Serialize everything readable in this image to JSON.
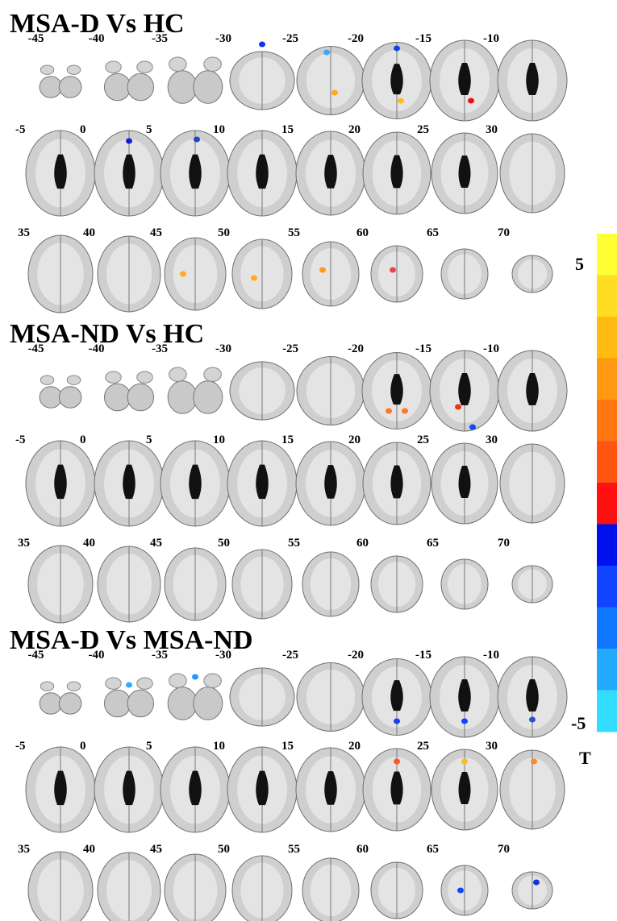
{
  "panels": [
    {
      "title": "MSA-D Vs HC",
      "slices": [
        "-45",
        "-40",
        "-35",
        "-30",
        "-25",
        "-20",
        "-15",
        "-10",
        "-5",
        "0",
        "5",
        "10",
        "15",
        "20",
        "25",
        "30",
        "35",
        "40",
        "45",
        "50",
        "55",
        "60",
        "65",
        "70"
      ]
    },
    {
      "title": "MSA-ND Vs HC",
      "slices": [
        "-45",
        "-40",
        "-35",
        "-30",
        "-25",
        "-20",
        "-15",
        "-10",
        "-5",
        "0",
        "5",
        "10",
        "15",
        "20",
        "25",
        "30",
        "35",
        "40",
        "45",
        "50",
        "55",
        "60",
        "65",
        "70"
      ]
    },
    {
      "title": "MSA-D Vs MSA-ND",
      "slices": [
        "-45",
        "-40",
        "-35",
        "-30",
        "-25",
        "-20",
        "-15",
        "-10",
        "-5",
        "0",
        "5",
        "10",
        "15",
        "20",
        "25",
        "30",
        "35",
        "40",
        "45",
        "50",
        "55",
        "60",
        "65",
        "70"
      ]
    }
  ],
  "colorbar": {
    "max_label": "5",
    "min_label": "-5",
    "unit": "T"
  }
}
